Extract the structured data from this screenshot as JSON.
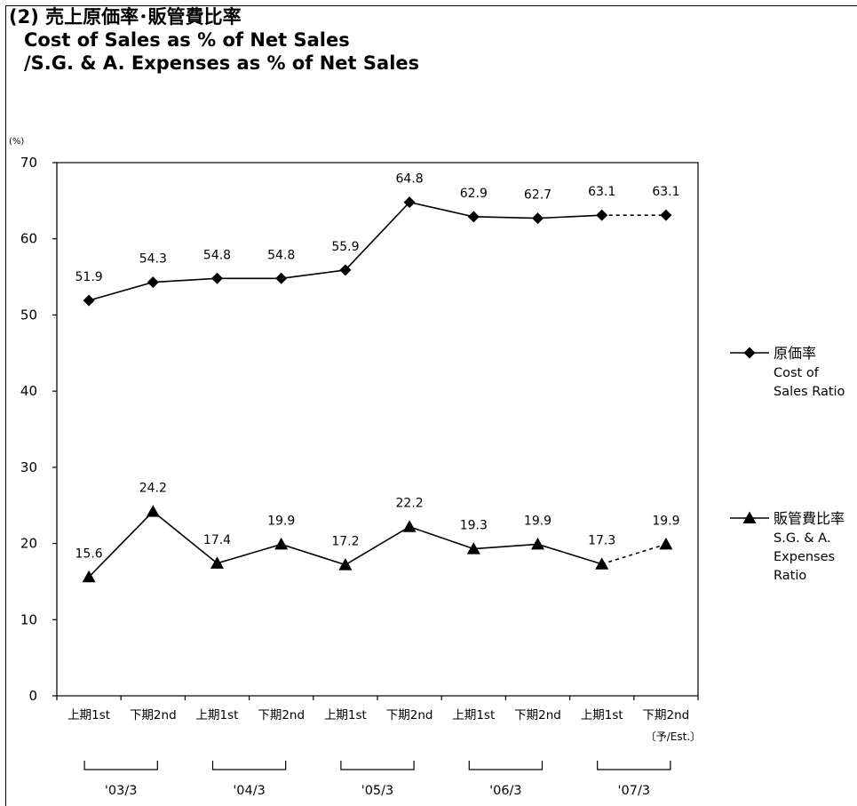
{
  "header": {
    "title_jp": "(2) 売上原価率･販管費比率",
    "title_en_1": "Cost of Sales as % of Net Sales",
    "title_en_2": "/S.G. & A. Expenses as % of Net Sales"
  },
  "chart_data": {
    "type": "line",
    "title": "(2) 売上原価率･販管費比率",
    "y_unit": "(%)",
    "ylim": [
      0,
      70
    ],
    "yticks": [
      0,
      10,
      20,
      30,
      40,
      50,
      60,
      70
    ],
    "grid": false,
    "legend_position": "right",
    "categories": [
      "上期1st",
      "下期2nd",
      "上期1st",
      "下期2nd",
      "上期1st",
      "下期2nd",
      "上期1st",
      "下期2nd",
      "上期1st",
      "下期2nd"
    ],
    "category_groups": [
      {
        "label": "'03/3",
        "span": [
          0,
          1
        ]
      },
      {
        "label": "'04/3",
        "span": [
          2,
          3
        ]
      },
      {
        "label": "'05/3",
        "span": [
          4,
          5
        ]
      },
      {
        "label": "'06/3",
        "span": [
          6,
          7
        ]
      },
      {
        "label": "'07/3",
        "span": [
          8,
          9
        ]
      }
    ],
    "estimate_note": "〔予/Est.〕",
    "estimate_index": 9,
    "series": [
      {
        "name_jp": "原価率",
        "name_en_1": "Cost of",
        "name_en_2": "Sales Ratio",
        "marker": "diamond",
        "values": [
          51.9,
          54.3,
          54.8,
          54.8,
          55.9,
          64.8,
          62.9,
          62.7,
          63.1,
          63.1
        ],
        "labels": [
          "51.9",
          "54.3",
          "54.8",
          "54.8",
          "55.9",
          "64.8",
          "62.9",
          "62.7",
          "63.1",
          "63.1"
        ],
        "dashed_from_index": 8
      },
      {
        "name_jp": "販管費比率",
        "name_en_1": "S.G. & A.",
        "name_en_2": "Expenses",
        "name_en_3": "Ratio",
        "marker": "triangle",
        "values": [
          15.6,
          24.2,
          17.4,
          19.9,
          17.2,
          22.2,
          19.3,
          19.9,
          17.3,
          19.9
        ],
        "labels": [
          "15.6",
          "24.2",
          "17.4",
          "19.9",
          "17.2",
          "22.2",
          "19.3",
          "19.9",
          "17.3",
          "19.9"
        ],
        "dashed_from_index": 8
      }
    ]
  }
}
